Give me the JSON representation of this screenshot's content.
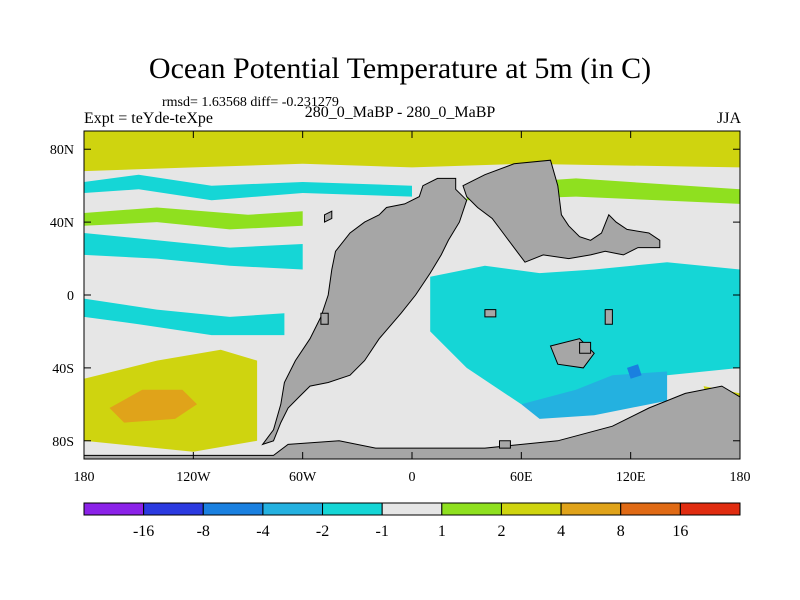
{
  "chart_data": {
    "type": "heatmap",
    "title": "Ocean Potential Temperature at 5m (in C)",
    "stats_text": "rmsd= 1.63568 diff= -0.231279",
    "rmsd": 1.63568,
    "diff": -0.231279,
    "left_label": "Expt = teYde-teXpe",
    "center_label": "280_0_MaBP - 280_0_MaBP",
    "right_label": "JJA",
    "x_ticks": [
      {
        "value": -180,
        "label": "180"
      },
      {
        "value": -120,
        "label": "120W"
      },
      {
        "value": -60,
        "label": "60W"
      },
      {
        "value": 0,
        "label": "0"
      },
      {
        "value": 60,
        "label": "60E"
      },
      {
        "value": 120,
        "label": "120E"
      },
      {
        "value": 180,
        "label": "180"
      }
    ],
    "y_ticks": [
      {
        "value": 80,
        "label": "80N"
      },
      {
        "value": 40,
        "label": "40N"
      },
      {
        "value": 0,
        "label": "0"
      },
      {
        "value": -40,
        "label": "40S"
      },
      {
        "value": -80,
        "label": "80S"
      }
    ],
    "xlim": [
      -180,
      180
    ],
    "ylim": [
      -90,
      90
    ],
    "colorbar": {
      "levels": [
        -16,
        -8,
        -4,
        -2,
        -1,
        1,
        2,
        4,
        8,
        16
      ],
      "labels": [
        "-16",
        "-8",
        "-4",
        "-2",
        "-1",
        "1",
        "2",
        "4",
        "8",
        "16"
      ],
      "colors": [
        "#8b22e8",
        "#2b3ae0",
        "#1a80e0",
        "#24b1e0",
        "#15d6d6",
        "#e6e6e6",
        "#8fe01f",
        "#cfd40f",
        "#e0a31a",
        "#e06a15",
        "#e02c10"
      ]
    },
    "colors": {
      "land": "#a6a6a6",
      "land_edge": "#000000",
      "zero_band": "#e6e6e6"
    },
    "bands": [
      {
        "name": "north-pole-band",
        "value": 2.5,
        "points": [
          [
            -180,
            90
          ],
          [
            180,
            90
          ],
          [
            180,
            70
          ],
          [
            60,
            72
          ],
          [
            0,
            70
          ],
          [
            -60,
            72
          ],
          [
            -120,
            70
          ],
          [
            -180,
            68
          ]
        ]
      },
      {
        "name": "north-cyan-band",
        "value": -1.5,
        "points": [
          [
            -180,
            62
          ],
          [
            -150,
            66
          ],
          [
            -110,
            60
          ],
          [
            -60,
            62
          ],
          [
            0,
            60
          ],
          [
            0,
            54
          ],
          [
            -60,
            56
          ],
          [
            -110,
            52
          ],
          [
            -150,
            58
          ],
          [
            -180,
            56
          ]
        ]
      },
      {
        "name": "north-green-band",
        "value": 1.5,
        "points": [
          [
            -180,
            45
          ],
          [
            -140,
            48
          ],
          [
            -90,
            44
          ],
          [
            -60,
            46
          ],
          [
            -60,
            38
          ],
          [
            -100,
            36
          ],
          [
            -140,
            40
          ],
          [
            -180,
            38
          ]
        ]
      },
      {
        "name": "subtropic-cyan-band",
        "value": -1.5,
        "points": [
          [
            -180,
            34
          ],
          [
            -140,
            30
          ],
          [
            -100,
            26
          ],
          [
            -60,
            28
          ],
          [
            -60,
            14
          ],
          [
            -100,
            16
          ],
          [
            -140,
            20
          ],
          [
            -180,
            22
          ]
        ]
      },
      {
        "name": "equator-cyan-band",
        "value": -1.5,
        "points": [
          [
            -180,
            -2
          ],
          [
            -140,
            -8
          ],
          [
            -100,
            -12
          ],
          [
            -70,
            -10
          ],
          [
            -70,
            -22
          ],
          [
            -110,
            -22
          ],
          [
            -150,
            -16
          ],
          [
            -180,
            -12
          ]
        ]
      },
      {
        "name": "south-yellow-band",
        "value": 3,
        "points": [
          [
            -180,
            -46
          ],
          [
            -140,
            -36
          ],
          [
            -105,
            -30
          ],
          [
            -85,
            -36
          ],
          [
            -85,
            -80
          ],
          [
            -120,
            -86
          ],
          [
            -180,
            -80
          ]
        ]
      },
      {
        "name": "south-orange-blob",
        "value": 6,
        "points": [
          [
            -166,
            -62
          ],
          [
            -148,
            -52
          ],
          [
            -126,
            -52
          ],
          [
            -118,
            -60
          ],
          [
            -130,
            -68
          ],
          [
            -158,
            -70
          ]
        ]
      },
      {
        "name": "indian-cyan-basin",
        "value": -1.5,
        "points": [
          [
            10,
            10
          ],
          [
            40,
            16
          ],
          [
            70,
            12
          ],
          [
            100,
            14
          ],
          [
            140,
            18
          ],
          [
            180,
            14
          ],
          [
            180,
            -40
          ],
          [
            140,
            -44
          ],
          [
            100,
            -56
          ],
          [
            60,
            -60
          ],
          [
            30,
            -40
          ],
          [
            10,
            -20
          ]
        ]
      },
      {
        "name": "indian-blue-patch",
        "value": -3,
        "points": [
          [
            60,
            -60
          ],
          [
            90,
            -52
          ],
          [
            110,
            -44
          ],
          [
            140,
            -42
          ],
          [
            140,
            -58
          ],
          [
            100,
            -66
          ],
          [
            70,
            -68
          ]
        ]
      },
      {
        "name": "deep-blue-spot",
        "value": -6,
        "points": [
          [
            118,
            -40
          ],
          [
            124,
            -38
          ],
          [
            126,
            -44
          ],
          [
            120,
            -46
          ]
        ]
      },
      {
        "name": "east-green-band",
        "value": 1.5,
        "points": [
          [
            30,
            60
          ],
          [
            90,
            64
          ],
          [
            180,
            58
          ],
          [
            180,
            50
          ],
          [
            90,
            54
          ],
          [
            30,
            52
          ]
        ]
      },
      {
        "name": "southeast-yellow",
        "value": 3,
        "points": [
          [
            160,
            -50
          ],
          [
            180,
            -54
          ],
          [
            180,
            -74
          ],
          [
            166,
            -70
          ]
        ]
      }
    ],
    "land": [
      {
        "name": "western-continent",
        "points": [
          [
            -18,
            44
          ],
          [
            -14,
            48
          ],
          [
            -4,
            50
          ],
          [
            4,
            54
          ],
          [
            6,
            60
          ],
          [
            14,
            64
          ],
          [
            24,
            64
          ],
          [
            24,
            58
          ],
          [
            30,
            52
          ],
          [
            26,
            40
          ],
          [
            20,
            30
          ],
          [
            16,
            22
          ],
          [
            10,
            12
          ],
          [
            2,
            0
          ],
          [
            -6,
            -10
          ],
          [
            -18,
            -24
          ],
          [
            -26,
            -36
          ],
          [
            -34,
            -44
          ],
          [
            -46,
            -48
          ],
          [
            -56,
            -50
          ],
          [
            -62,
            -56
          ],
          [
            -68,
            -62
          ],
          [
            -72,
            -70
          ],
          [
            -76,
            -80
          ],
          [
            -82,
            -82
          ],
          [
            -76,
            -74
          ],
          [
            -72,
            -60
          ],
          [
            -70,
            -48
          ],
          [
            -64,
            -36
          ],
          [
            -56,
            -24
          ],
          [
            -50,
            -12
          ],
          [
            -46,
            0
          ],
          [
            -44,
            14
          ],
          [
            -42,
            24
          ],
          [
            -34,
            34
          ],
          [
            -26,
            40
          ]
        ]
      },
      {
        "name": "south-polar-land",
        "points": [
          [
            -68,
            -82
          ],
          [
            -40,
            -80
          ],
          [
            -20,
            -84
          ],
          [
            40,
            -84
          ],
          [
            80,
            -80
          ],
          [
            110,
            -72
          ],
          [
            130,
            -62
          ],
          [
            150,
            -54
          ],
          [
            170,
            -50
          ],
          [
            180,
            -56
          ],
          [
            180,
            -90
          ],
          [
            -180,
            -90
          ],
          [
            -180,
            -88
          ],
          [
            -76,
            -88
          ]
        ]
      },
      {
        "name": "northeast-continent",
        "points": [
          [
            28,
            60
          ],
          [
            40,
            66
          ],
          [
            56,
            72
          ],
          [
            76,
            74
          ],
          [
            80,
            60
          ],
          [
            82,
            44
          ],
          [
            86,
            38
          ],
          [
            92,
            32
          ],
          [
            98,
            30
          ],
          [
            104,
            34
          ],
          [
            108,
            44
          ],
          [
            112,
            40
          ],
          [
            118,
            36
          ],
          [
            130,
            34
          ],
          [
            136,
            30
          ],
          [
            136,
            26
          ],
          [
            124,
            26
          ],
          [
            116,
            22
          ],
          [
            106,
            24
          ],
          [
            98,
            22
          ],
          [
            86,
            20
          ],
          [
            72,
            22
          ],
          [
            62,
            18
          ],
          [
            56,
            26
          ],
          [
            50,
            34
          ],
          [
            44,
            42
          ],
          [
            36,
            48
          ],
          [
            30,
            54
          ]
        ]
      },
      {
        "name": "south-island-a",
        "points": [
          [
            76,
            -28
          ],
          [
            92,
            -24
          ],
          [
            100,
            -32
          ],
          [
            94,
            -40
          ],
          [
            80,
            -38
          ]
        ]
      },
      {
        "name": "small-island-a",
        "points": [
          [
            -48,
            44
          ],
          [
            -44,
            46
          ],
          [
            -44,
            42
          ],
          [
            -48,
            40
          ]
        ]
      },
      {
        "name": "small-island-b",
        "points": [
          [
            -50,
            -10
          ],
          [
            -46,
            -10
          ],
          [
            -46,
            -16
          ],
          [
            -50,
            -16
          ]
        ]
      },
      {
        "name": "small-island-c",
        "points": [
          [
            40,
            -8
          ],
          [
            46,
            -8
          ],
          [
            46,
            -12
          ],
          [
            40,
            -12
          ]
        ]
      },
      {
        "name": "small-island-d",
        "points": [
          [
            106,
            -8
          ],
          [
            110,
            -8
          ],
          [
            110,
            -16
          ],
          [
            106,
            -16
          ]
        ]
      },
      {
        "name": "small-island-e",
        "points": [
          [
            92,
            -26
          ],
          [
            98,
            -26
          ],
          [
            98,
            -32
          ],
          [
            92,
            -32
          ]
        ]
      },
      {
        "name": "small-island-f",
        "points": [
          [
            48,
            -80
          ],
          [
            54,
            -80
          ],
          [
            54,
            -84
          ],
          [
            48,
            -84
          ]
        ]
      }
    ]
  }
}
